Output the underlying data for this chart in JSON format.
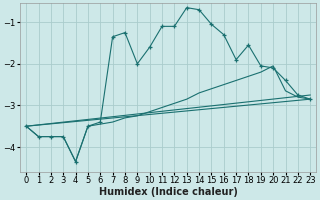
{
  "xlabel": "Humidex (Indice chaleur)",
  "bg_color": "#cde8e8",
  "grid_color": "#aacccc",
  "line_color": "#1a7070",
  "xlim": [
    -0.5,
    23.5
  ],
  "ylim": [
    -4.6,
    -0.55
  ],
  "yticks": [
    -4,
    -3,
    -2,
    -1
  ],
  "xticks": [
    0,
    1,
    2,
    3,
    4,
    5,
    6,
    7,
    8,
    9,
    10,
    11,
    12,
    13,
    14,
    15,
    16,
    17,
    18,
    19,
    20,
    21,
    22,
    23
  ],
  "series_marked": {
    "x": [
      0,
      1,
      2,
      3,
      4,
      5,
      6,
      7,
      8,
      9,
      10,
      11,
      12,
      13,
      14,
      15,
      16,
      17,
      18,
      19,
      20,
      21,
      22,
      23
    ],
    "y": [
      -3.5,
      -3.75,
      -3.75,
      -3.75,
      -4.35,
      -3.5,
      -3.4,
      -1.35,
      -1.25,
      -2.0,
      -1.6,
      -1.1,
      -1.1,
      -0.65,
      -0.7,
      -1.05,
      -1.3,
      -1.9,
      -1.55,
      -2.05,
      -2.1,
      -2.4,
      -2.75,
      -2.85
    ]
  },
  "series_linear1": {
    "x": [
      0,
      23
    ],
    "y": [
      -3.5,
      -2.85
    ]
  },
  "series_linear2": {
    "x": [
      0,
      23
    ],
    "y": [
      -3.5,
      -2.75
    ]
  },
  "series_curved": {
    "x": [
      0,
      1,
      2,
      3,
      4,
      5,
      6,
      7,
      8,
      9,
      10,
      11,
      12,
      13,
      14,
      15,
      16,
      17,
      18,
      19,
      20,
      21,
      22,
      23
    ],
    "y": [
      -3.5,
      -3.75,
      -3.75,
      -3.75,
      -4.35,
      -3.5,
      -3.45,
      -3.4,
      -3.3,
      -3.25,
      -3.15,
      -3.05,
      -2.95,
      -2.85,
      -2.7,
      -2.6,
      -2.5,
      -2.4,
      -2.3,
      -2.2,
      -2.05,
      -2.65,
      -2.8,
      -2.85
    ]
  }
}
